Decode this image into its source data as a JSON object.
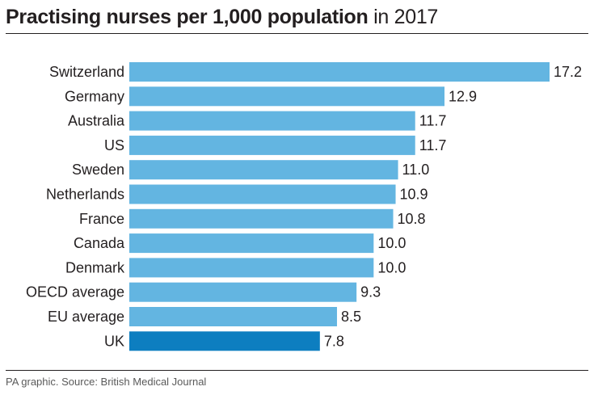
{
  "title": {
    "bold": "Practising nurses per 1,000 population",
    "light": "in 2017"
  },
  "source": "PA graphic. Source: British Medical Journal",
  "colors": {
    "bar": "#63b5e1",
    "highlight": "#0d7ec0",
    "text": "#231f20"
  },
  "chart_data": {
    "type": "bar",
    "orientation": "horizontal",
    "categories": [
      "Switzerland",
      "Germany",
      "Australia",
      "US",
      "Sweden",
      "Netherlands",
      "France",
      "Canada",
      "Denmark",
      "OECD average",
      "EU average",
      "UK"
    ],
    "values": [
      17.2,
      12.9,
      11.7,
      11.7,
      11.0,
      10.9,
      10.8,
      10.0,
      10.0,
      9.3,
      8.5,
      7.8
    ],
    "value_labels": [
      "17.2",
      "12.9",
      "11.7",
      "11.7",
      "11.0",
      "10.9",
      "10.8",
      "10.0",
      "10.0",
      "9.3",
      "8.5",
      "7.8"
    ],
    "highlight": "UK",
    "xlim": [
      0,
      17.2
    ],
    "grid": false,
    "legend": "none"
  }
}
